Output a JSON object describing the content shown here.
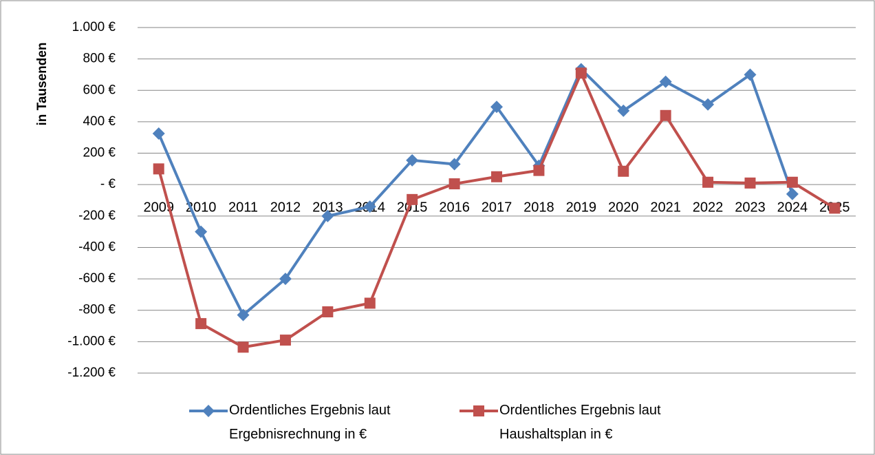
{
  "chart_data": {
    "type": "line",
    "y_label": "in Tausenden",
    "categories": [
      "2009",
      "2010",
      "2011",
      "2012",
      "2013",
      "2014",
      "2015",
      "2016",
      "2017",
      "2018",
      "2019",
      "2020",
      "2021",
      "2022",
      "2023",
      "2024",
      "2025"
    ],
    "series": [
      {
        "name": "Ordentliches Ergebnis laut Ergebnisrechnung in €",
        "color": "#4f81bd",
        "marker": "diamond",
        "values": [
          325,
          -300,
          -830,
          -600,
          -200,
          -140,
          155,
          130,
          495,
          120,
          735,
          470,
          655,
          510,
          700,
          -60,
          null
        ]
      },
      {
        "name": "Ordentliches Ergebnis laut Haushaltsplan in €",
        "color": "#c0504d",
        "marker": "square",
        "values": [
          100,
          -885,
          -1035,
          -990,
          -810,
          -755,
          -95,
          5,
          50,
          90,
          710,
          85,
          440,
          15,
          10,
          15,
          -150
        ]
      }
    ],
    "ylim": [
      -1200,
      1000
    ],
    "yticks": [
      {
        "value": 1000,
        "label": "1.000 €"
      },
      {
        "value": 800,
        "label": "800 €"
      },
      {
        "value": 600,
        "label": "600 €"
      },
      {
        "value": 400,
        "label": "400 €"
      },
      {
        "value": 200,
        "label": "200 €"
      },
      {
        "value": 0,
        "label": "-   €"
      },
      {
        "value": -200,
        "label": "-200 €"
      },
      {
        "value": -400,
        "label": "-400 €"
      },
      {
        "value": -600,
        "label": "-600 €"
      },
      {
        "value": -800,
        "label": "-800 €"
      },
      {
        "value": -1000,
        "label": "-1.000 €"
      },
      {
        "value": -1200,
        "label": "-1.200 €"
      }
    ],
    "grid": true,
    "legend": "bottom"
  }
}
